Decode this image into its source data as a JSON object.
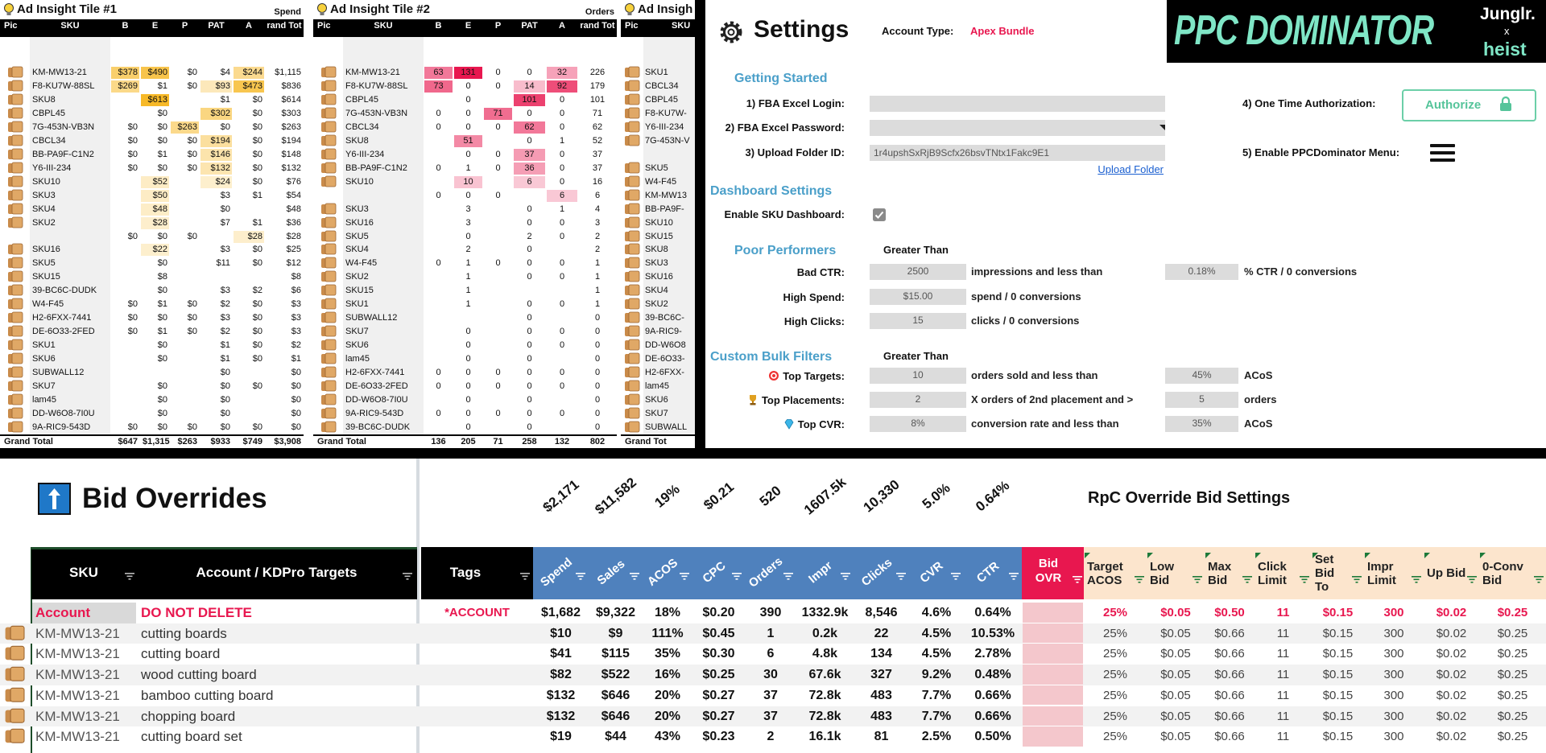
{
  "tiles": [
    {
      "title": "Ad Insight Tile #1",
      "metric": "Spend",
      "headers": [
        "Pic",
        "SKU",
        "B",
        "E",
        "P",
        "PAT",
        "A",
        "rand Tot"
      ],
      "heat_color": "#f7b928",
      "rows": [
        [
          "KM-MW13-21",
          "$378",
          "$490",
          "$0",
          "$4",
          "$244",
          "$1,115"
        ],
        [
          "F8-KU7W-88SL",
          "$269",
          "$1",
          "$0",
          "$93",
          "$473",
          "$836"
        ],
        [
          "SKU8",
          null,
          "$613",
          null,
          "$1",
          "$0",
          "$614"
        ],
        [
          "CBPL45",
          null,
          "$0",
          null,
          "$302",
          "$0",
          "$303"
        ],
        [
          "7G-453N-VB3N",
          "$0",
          "$0",
          "$263",
          "$0",
          "$0",
          "$263"
        ],
        [
          "CBCL34",
          "$0",
          "$0",
          "$0",
          "$194",
          "$0",
          "$194"
        ],
        [
          "BB-PA9F-C1N2",
          "$0",
          "$1",
          "$0",
          "$146",
          "$0",
          "$148"
        ],
        [
          "Y6-III-234",
          "$0",
          "$0",
          "$0",
          "$132",
          "$0",
          "$132"
        ],
        [
          "SKU10",
          null,
          "$52",
          null,
          "$24",
          "$0",
          "$76"
        ],
        [
          "SKU3",
          null,
          "$50",
          null,
          "$3",
          "$1",
          "$54"
        ],
        [
          "SKU4",
          null,
          "$48",
          null,
          "$0",
          null,
          "$48"
        ],
        [
          "SKU2",
          null,
          "$28",
          null,
          "$7",
          "$1",
          "$36"
        ],
        [
          null,
          "$0",
          "$0",
          "$0",
          null,
          "$28",
          "$28"
        ],
        [
          "SKU16",
          null,
          "$22",
          null,
          "$3",
          "$0",
          "$25"
        ],
        [
          "SKU5",
          null,
          "$0",
          null,
          "$11",
          "$0",
          "$12"
        ],
        [
          "SKU15",
          null,
          "$8",
          null,
          null,
          null,
          "$8"
        ],
        [
          "39-BC6C-DUDK",
          null,
          "$0",
          null,
          "$3",
          "$2",
          "$6"
        ],
        [
          "W4-F45",
          "$0",
          "$1",
          "$0",
          "$2",
          "$0",
          "$3"
        ],
        [
          "H2-6FXX-7441",
          "$0",
          "$0",
          "$0",
          "$3",
          "$0",
          "$3"
        ],
        [
          "DE-6O33-2FED",
          "$0",
          "$1",
          "$0",
          "$2",
          "$0",
          "$3"
        ],
        [
          "SKU1",
          null,
          "$0",
          null,
          "$1",
          "$0",
          "$2"
        ],
        [
          "SKU6",
          null,
          "$0",
          null,
          "$1",
          "$0",
          "$1"
        ],
        [
          "SUBWALL12",
          null,
          null,
          null,
          "$0",
          null,
          "$0"
        ],
        [
          "SKU7",
          null,
          "$0",
          null,
          "$0",
          "$0",
          "$0"
        ],
        [
          "lam45",
          null,
          "$0",
          null,
          "$0",
          null,
          "$0"
        ],
        [
          "DD-W6O8-7I0U",
          null,
          "$0",
          null,
          "$0",
          null,
          "$0"
        ],
        [
          "9A-RIC9-543D",
          "$0",
          "$0",
          "$0",
          "$0",
          "$0",
          "$0"
        ]
      ],
      "total": [
        "Grand Total",
        "$647",
        "$1,315",
        "$263",
        "$933",
        "$749",
        "$3,908"
      ]
    },
    {
      "title": "Ad Insight Tile #2",
      "metric": "Orders",
      "headers": [
        "Pic",
        "SKU",
        "B",
        "E",
        "P",
        "PAT",
        "A",
        "rand Tot"
      ],
      "heat_color": "#e8174f",
      "rows": [
        [
          "KM-MW13-21",
          63,
          131,
          0,
          0,
          32,
          226
        ],
        [
          "F8-KU7W-88SL",
          73,
          0,
          0,
          14,
          92,
          179
        ],
        [
          "CBPL45",
          null,
          0,
          null,
          101,
          0,
          101
        ],
        [
          "7G-453N-VB3N",
          0,
          0,
          71,
          0,
          0,
          71
        ],
        [
          "CBCL34",
          0,
          0,
          0,
          62,
          0,
          62
        ],
        [
          "SKU8",
          null,
          51,
          null,
          0,
          1,
          52
        ],
        [
          "Y6-III-234",
          null,
          0,
          0,
          37,
          0,
          37
        ],
        [
          "BB-PA9F-C1N2",
          0,
          1,
          0,
          36,
          0,
          37
        ],
        [
          "SKU10",
          null,
          10,
          null,
          6,
          0,
          16
        ],
        [
          null,
          0,
          0,
          0,
          null,
          6,
          6
        ],
        [
          "SKU3",
          null,
          3,
          null,
          0,
          1,
          4
        ],
        [
          "SKU16",
          null,
          3,
          null,
          0,
          0,
          3
        ],
        [
          "SKU5",
          null,
          0,
          null,
          2,
          0,
          2
        ],
        [
          "SKU4",
          null,
          2,
          null,
          0,
          null,
          2
        ],
        [
          "W4-F45",
          0,
          1,
          0,
          0,
          0,
          1
        ],
        [
          "SKU2",
          null,
          1,
          null,
          0,
          0,
          1
        ],
        [
          "SKU15",
          null,
          1,
          null,
          null,
          null,
          1
        ],
        [
          "SKU1",
          null,
          1,
          null,
          0,
          0,
          1
        ],
        [
          "SUBWALL12",
          null,
          null,
          null,
          0,
          null,
          0
        ],
        [
          "SKU7",
          null,
          0,
          null,
          0,
          0,
          0
        ],
        [
          "SKU6",
          null,
          0,
          null,
          0,
          0,
          0
        ],
        [
          "lam45",
          null,
          0,
          null,
          0,
          null,
          0
        ],
        [
          "H2-6FXX-7441",
          0,
          0,
          0,
          0,
          0,
          0
        ],
        [
          "DE-6O33-2FED",
          0,
          0,
          0,
          0,
          0,
          0
        ],
        [
          "DD-W6O8-7I0U",
          null,
          0,
          null,
          0,
          null,
          0
        ],
        [
          "9A-RIC9-543D",
          0,
          0,
          0,
          0,
          0,
          0
        ],
        [
          "39-BC6C-DUDK",
          null,
          0,
          null,
          0,
          null,
          0
        ]
      ],
      "total": [
        "Grand Total",
        136,
        205,
        71,
        258,
        132,
        802
      ]
    }
  ],
  "tile3": {
    "title": "Ad Insigh",
    "headers": [
      "Pic",
      "SKU"
    ],
    "rows": [
      "SKU1",
      "CBCL34",
      "CBPL45",
      "F8-KU7W-",
      "Y6-III-234",
      "7G-453N-V",
      null,
      "SKU5",
      "W4-F45",
      "KM-MW13",
      "BB-PA9F-",
      "SKU10",
      "SKU15",
      "SKU8",
      "SKU3",
      "SKU16",
      "SKU4",
      "SKU2",
      "39-BC6C-",
      "9A-RIC9-",
      "DD-W6O8",
      "DE-6O33-",
      "H2-6FXX-",
      "lam45",
      "SKU6",
      "SKU7",
      "SUBWALL"
    ],
    "total": "Grand Tot"
  },
  "settings": {
    "title": "Settings",
    "account_type_label": "Account Type:",
    "account_type": "Apex Bundle",
    "logo": {
      "brand": "PPC DOMINATOR",
      "partner1": "Junglr.",
      "x": "x",
      "partner2": "heist"
    },
    "getting_started": {
      "heading": "Getting Started",
      "login_label": "1) FBA Excel Login:",
      "password_label": "2) FBA Excel Password:",
      "folder_label": "3) Upload Folder ID:",
      "folder_id": "1r4upshSxRjB9Scfx26bsvTNtx1Fakc9E1",
      "upload_link": "Upload Folder",
      "auth_label": "4) One Time Authorization:",
      "auth_button": "Authorize",
      "menu_label": "5) Enable PPCDominator Menu:"
    },
    "dashboard": {
      "heading": "Dashboard Settings",
      "sku_label": "Enable SKU Dashboard:",
      "sku_enabled": true
    },
    "poor": {
      "heading": "Poor Performers",
      "column": "Greater Than",
      "rows": [
        {
          "label": "Bad CTR:",
          "value": 2500,
          "text": "impressions and less than",
          "value2": "0.18%",
          "text2": "% CTR / 0 conversions"
        },
        {
          "label": "High Spend:",
          "value": "$15.00",
          "text": "spend / 0 conversions"
        },
        {
          "label": "High Clicks:",
          "value": 15,
          "text": "clicks / 0 conversions"
        }
      ]
    },
    "bulk": {
      "heading": "Custom Bulk Filters",
      "column": "Greater Than",
      "rows": [
        {
          "label": "Top Targets:",
          "value": 10,
          "text": "orders sold and less than",
          "value2": "45%",
          "text2": "ACoS"
        },
        {
          "label": "Top Placements:",
          "value": 2,
          "text": "X orders of 2nd placement and >",
          "value2": 5,
          "text2": "orders"
        },
        {
          "label": "Top CVR:",
          "value": "8%",
          "text": "conversion rate and less than",
          "value2": "35%",
          "text2": "ACoS"
        }
      ]
    }
  },
  "bid": {
    "title": "Bid Overrides",
    "totals": [
      "$2,171",
      "$11,582",
      "19%",
      "$0.21",
      520,
      "1607.5k",
      "10,330",
      "5.0%",
      "0.64%"
    ],
    "settings_title": "RpC Override Bid Settings",
    "headers": {
      "sku": "SKU",
      "targets": "Account / KDPro Targets",
      "tags": "Tags",
      "metrics": [
        "Spend",
        "Sales",
        "ACOS",
        "CPC",
        "Orders",
        "Impr",
        "Clicks",
        "CVR",
        "CTR"
      ],
      "bid_ovr": "Bid OVR",
      "settings": [
        "Target ACOS",
        "Low Bid",
        "Max Bid",
        "Click Limit",
        "Set Bid To",
        "Impr Limit",
        "Up Bid",
        "0-Conv Bid"
      ]
    },
    "rows": [
      {
        "sku": "Account",
        "target": "DO NOT DELETE",
        "tags": "*ACCOUNT",
        "metrics": [
          "$1,682",
          "$9,322",
          "18%",
          "$0.20",
          390,
          "1332.9k",
          "8,546",
          "4.6%",
          "0.64%"
        ],
        "settings": [
          "25%",
          "$0.05",
          "$0.50",
          11,
          "$0.15",
          300,
          "$0.02",
          "$0.25"
        ]
      },
      {
        "sku": "KM-MW13-21",
        "target": "cutting boards",
        "metrics": [
          "$10",
          "$9",
          "111%",
          "$0.45",
          1,
          "0.2k",
          22,
          "4.5%",
          "10.53%"
        ],
        "settings": [
          "25%",
          "$0.05",
          "$0.66",
          11,
          "$0.15",
          300,
          "$0.02",
          "$0.25"
        ]
      },
      {
        "sku": "KM-MW13-21",
        "target": "cutting board",
        "metrics": [
          "$41",
          "$115",
          "35%",
          "$0.30",
          6,
          "4.8k",
          134,
          "4.5%",
          "2.78%"
        ],
        "settings": [
          "25%",
          "$0.05",
          "$0.66",
          11,
          "$0.15",
          300,
          "$0.02",
          "$0.25"
        ]
      },
      {
        "sku": "KM-MW13-21",
        "target": "wood cutting board",
        "metrics": [
          "$82",
          "$522",
          "16%",
          "$0.25",
          30,
          "67.6k",
          327,
          "9.2%",
          "0.48%"
        ],
        "settings": [
          "25%",
          "$0.05",
          "$0.66",
          11,
          "$0.15",
          300,
          "$0.02",
          "$0.25"
        ]
      },
      {
        "sku": "KM-MW13-21",
        "target": "bamboo cutting board",
        "metrics": [
          "$132",
          "$646",
          "20%",
          "$0.27",
          37,
          "72.8k",
          483,
          "7.7%",
          "0.66%"
        ],
        "settings": [
          "25%",
          "$0.05",
          "$0.66",
          11,
          "$0.15",
          300,
          "$0.02",
          "$0.25"
        ]
      },
      {
        "sku": "KM-MW13-21",
        "target": "chopping board",
        "metrics": [
          "$132",
          "$646",
          "20%",
          "$0.27",
          37,
          "72.8k",
          483,
          "7.7%",
          "0.66%"
        ],
        "settings": [
          "25%",
          "$0.05",
          "$0.66",
          11,
          "$0.15",
          300,
          "$0.02",
          "$0.25"
        ]
      },
      {
        "sku": "KM-MW13-21",
        "target": "cutting board set",
        "metrics": [
          "$19",
          "$44",
          "43%",
          "$0.23",
          2,
          "16.1k",
          81,
          "2.5%",
          "0.50%"
        ],
        "settings": [
          "25%",
          "$0.05",
          "$0.66",
          11,
          "$0.15",
          300,
          "$0.02",
          "$0.25"
        ]
      }
    ]
  }
}
